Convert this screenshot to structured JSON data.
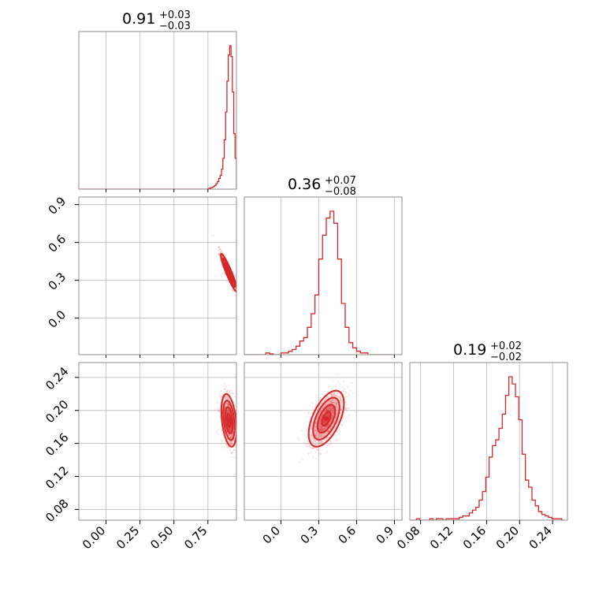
{
  "chart_data": {
    "type": "corner",
    "color": "#d62728",
    "parameters": [
      {
        "title_value": "0.91",
        "title_plus": "+0.03",
        "title_minus": "−0.03",
        "median": 0.91,
        "err_plus": 0.03,
        "err_minus": 0.03,
        "range": [
          -0.2,
          0.96
        ],
        "ticks": [
          0.0,
          0.25,
          0.5,
          0.75
        ],
        "tick_labels": [
          "0.00",
          "0.25",
          "0.50",
          "0.75"
        ]
      },
      {
        "title_value": "0.36",
        "title_plus": "+0.07",
        "title_minus": "−0.08",
        "median": 0.36,
        "err_plus": 0.07,
        "err_minus": 0.08,
        "range": [
          -0.29,
          0.96
        ],
        "ticks": [
          0.0,
          0.3,
          0.6,
          0.9
        ],
        "tick_labels": [
          "0.0",
          "0.3",
          "0.6",
          "0.9"
        ]
      },
      {
        "title_value": "0.19",
        "title_plus": "+0.02",
        "title_minus": "−0.02",
        "median": 0.19,
        "err_plus": 0.02,
        "err_minus": 0.02,
        "range": [
          0.067,
          0.258
        ],
        "ticks": [
          0.08,
          0.12,
          0.16,
          0.2,
          0.24
        ],
        "tick_labels": [
          "0.08",
          "0.12",
          "0.16",
          "0.20",
          "0.24"
        ]
      }
    ],
    "histograms": [
      {
        "param": 0,
        "edges": [
          0.75,
          0.76,
          0.77,
          0.78,
          0.79,
          0.8,
          0.81,
          0.82,
          0.83,
          0.84,
          0.85,
          0.86,
          0.87,
          0.88,
          0.89,
          0.9,
          0.91,
          0.92,
          0.93,
          0.94,
          0.95,
          0.96
        ],
        "counts": [
          0.003,
          0.006,
          0.009,
          0.012,
          0.018,
          0.025,
          0.035,
          0.05,
          0.07,
          0.09,
          0.13,
          0.2,
          0.32,
          0.5,
          0.7,
          0.87,
          0.93,
          0.86,
          0.63,
          0.36,
          0.2
        ]
      },
      {
        "param": 1,
        "edges": [
          -0.15,
          -0.12,
          -0.09,
          -0.06,
          -0.03,
          0.0,
          0.03,
          0.06,
          0.09,
          0.12,
          0.15,
          0.18,
          0.21,
          0.24,
          0.27,
          0.3,
          0.33,
          0.36,
          0.39,
          0.42,
          0.45,
          0.48,
          0.51,
          0.54,
          0.57,
          0.6,
          0.63,
          0.66,
          0.69,
          0.72,
          0.75,
          0.78,
          0.81,
          0.84,
          0.87,
          0.9
        ],
        "counts": [
          0.0,
          0.01,
          0.005,
          0.0,
          0.0,
          0.01,
          0.01,
          0.02,
          0.03,
          0.05,
          0.08,
          0.1,
          0.16,
          0.24,
          0.35,
          0.56,
          0.7,
          0.8,
          0.84,
          0.77,
          0.56,
          0.3,
          0.16,
          0.07,
          0.04,
          0.02,
          0.01,
          0.01,
          0.0,
          0.0,
          0.0,
          0.0,
          0.0,
          0.0,
          0.0
        ]
      },
      {
        "param": 2,
        "edges": [
          0.067,
          0.071,
          0.075,
          0.079,
          0.083,
          0.087,
          0.091,
          0.095,
          0.099,
          0.103,
          0.107,
          0.111,
          0.115,
          0.119,
          0.123,
          0.127,
          0.131,
          0.135,
          0.139,
          0.143,
          0.147,
          0.151,
          0.155,
          0.159,
          0.163,
          0.167,
          0.171,
          0.175,
          0.179,
          0.183,
          0.187,
          0.191,
          0.195,
          0.199,
          0.203,
          0.207,
          0.211,
          0.215,
          0.219,
          0.223,
          0.227,
          0.231,
          0.235,
          0.239,
          0.243,
          0.247,
          0.251,
          0.255
        ],
        "counts": [
          0.0,
          0.0,
          0.01,
          0.0,
          0.0,
          0.0,
          0.01,
          0.0,
          0.01,
          0.01,
          0.0,
          0.01,
          0.01,
          0.01,
          0.01,
          0.02,
          0.03,
          0.03,
          0.05,
          0.07,
          0.09,
          0.14,
          0.2,
          0.3,
          0.44,
          0.52,
          0.56,
          0.64,
          0.74,
          0.87,
          1.0,
          0.95,
          0.86,
          0.7,
          0.46,
          0.28,
          0.23,
          0.14,
          0.1,
          0.06,
          0.04,
          0.03,
          0.02,
          0.01,
          0.01,
          0.01,
          0.0
        ]
      }
    ],
    "joint_2d": [
      {
        "x_param": 0,
        "y_param": 1,
        "center": [
          0.905,
          0.36
        ],
        "sx": 0.03,
        "sy": 0.075,
        "rho": -0.93
      },
      {
        "x_param": 0,
        "y_param": 2,
        "center": [
          0.905,
          0.188
        ],
        "sx": 0.028,
        "sy": 0.016,
        "rho": -0.35
      },
      {
        "x_param": 1,
        "y_param": 2,
        "center": [
          0.36,
          0.19
        ],
        "sx": 0.07,
        "sy": 0.017,
        "rho": 0.55
      }
    ],
    "contour_levels_sigma": [
      0.5,
      1.0,
      1.5,
      2.0
    ],
    "grid": true
  }
}
